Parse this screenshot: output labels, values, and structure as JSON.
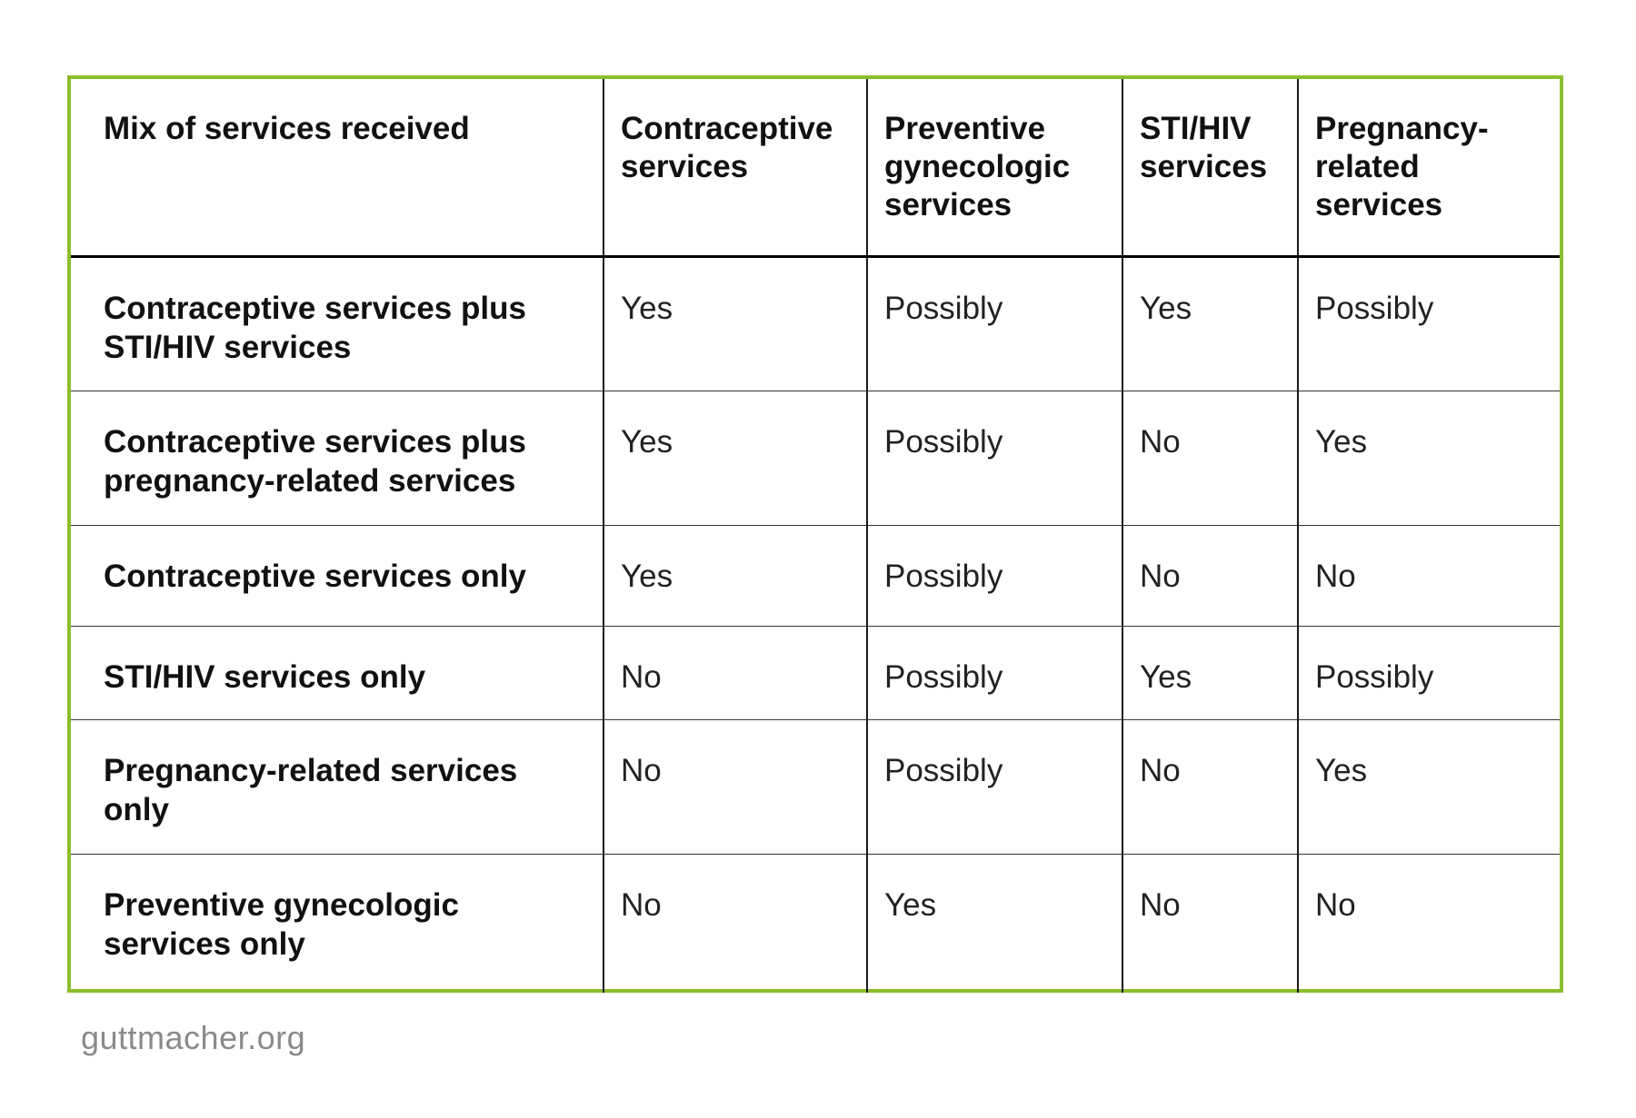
{
  "table": {
    "headers": [
      "Mix of services received",
      "Contraceptive services",
      "Preventive gynecologic services",
      "STI/HIV services",
      "Pregnancy-related services"
    ],
    "rows": [
      {
        "label": "Contraceptive services plus STI/HIV services",
        "values": [
          "Yes",
          "Possibly",
          "Yes",
          "Possibly"
        ]
      },
      {
        "label": "Contraceptive services plus pregnancy-related services",
        "values": [
          "Yes",
          "Possibly",
          "No",
          "Yes"
        ]
      },
      {
        "label": "Contraceptive services only",
        "values": [
          "Yes",
          "Possibly",
          "No",
          "No"
        ]
      },
      {
        "label": "STI/HIV services only",
        "values": [
          "No",
          "Possibly",
          "Yes",
          "Possibly"
        ]
      },
      {
        "label": "Pregnancy-related services only",
        "values": [
          "No",
          "Possibly",
          "No",
          "Yes"
        ]
      },
      {
        "label": "Preventive gynecologic services only",
        "values": [
          "No",
          "Yes",
          "No",
          "No"
        ]
      }
    ]
  },
  "footer": {
    "source": "guttmacher.org"
  },
  "colors": {
    "frame_border": "#8cbd2e",
    "text": "#111111",
    "source_text": "#8a8a8a"
  }
}
